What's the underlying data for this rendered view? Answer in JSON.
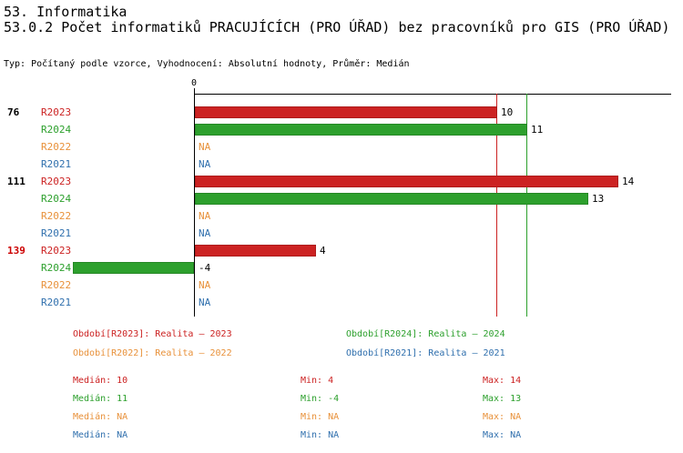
{
  "header": {
    "title": "53. Informatika",
    "subtitle": "53.0.2 Počet informatiků PRACUJÍCÍCH (PRO ÚŘAD) bez pracovníků pro GIS (PRO ÚŘAD)",
    "meta": "Typ: Počítaný podle vzorce, Vyhodnocení: Absolutní hodnoty, Průměr: Medián"
  },
  "colors": {
    "R2023": "#CC2222",
    "R2024": "#2DA02D",
    "R2022": "#E8913A",
    "R2021": "#2F6FAD",
    "axis": "#000000",
    "group_label_default": "#000000",
    "group_label_highlight": "#CC0000"
  },
  "chart_data": {
    "type": "bar",
    "orientation": "horizontal",
    "zero_label": "0",
    "x_axis": {
      "zero": 0,
      "approx_range": [
        -6.3,
        15.8
      ],
      "grid": false
    },
    "groups": [
      {
        "label": "76",
        "highlight": false,
        "rows": [
          {
            "series": "R2023",
            "value": 10,
            "display": "10"
          },
          {
            "series": "R2024",
            "value": 11,
            "display": "11"
          },
          {
            "series": "R2022",
            "value": null,
            "display": "NA"
          },
          {
            "series": "R2021",
            "value": null,
            "display": "NA"
          }
        ]
      },
      {
        "label": "111",
        "highlight": false,
        "rows": [
          {
            "series": "R2023",
            "value": 14,
            "display": "14"
          },
          {
            "series": "R2024",
            "value": 13,
            "display": "13"
          },
          {
            "series": "R2022",
            "value": null,
            "display": "NA"
          },
          {
            "series": "R2021",
            "value": null,
            "display": "NA"
          }
        ]
      },
      {
        "label": "139",
        "highlight": true,
        "rows": [
          {
            "series": "R2023",
            "value": 4,
            "display": "4"
          },
          {
            "series": "R2024",
            "value": -4,
            "display": "-4"
          },
          {
            "series": "R2022",
            "value": null,
            "display": "NA"
          },
          {
            "series": "R2021",
            "value": null,
            "display": "NA"
          }
        ]
      }
    ],
    "reference_lines": [
      {
        "series": "R2023",
        "value": 10,
        "meaning": "median"
      },
      {
        "series": "R2024",
        "value": 11,
        "meaning": "median"
      }
    ]
  },
  "legend": [
    {
      "series": "R2023",
      "label": "Období[R2023]: Realita – 2023"
    },
    {
      "series": "R2024",
      "label": "Období[R2024]: Realita – 2024"
    },
    {
      "series": "R2022",
      "label": "Období[R2022]: Realita – 2022"
    },
    {
      "series": "R2021",
      "label": "Období[R2021]: Realita – 2021"
    }
  ],
  "stats": [
    {
      "series": "R2023",
      "median": "Medián: 10",
      "min": "Min: 4",
      "max": "Max: 14"
    },
    {
      "series": "R2024",
      "median": "Medián: 11",
      "min": "Min: -4",
      "max": "Max: 13"
    },
    {
      "series": "R2022",
      "median": "Medián: NA",
      "min": "Min: NA",
      "max": "Max: NA"
    },
    {
      "series": "R2021",
      "median": "Medián: NA",
      "min": "Min: NA",
      "max": "Max: NA"
    }
  ]
}
